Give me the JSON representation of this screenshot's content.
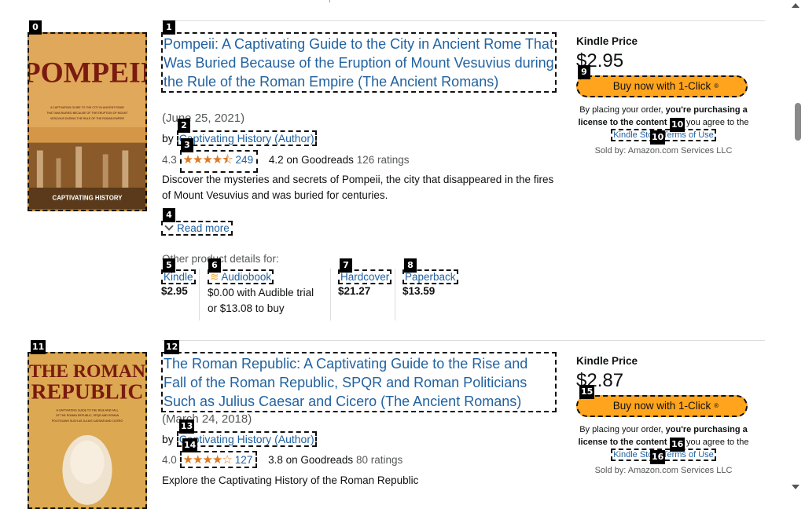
{
  "products": [
    {
      "cover": {
        "title": "POMPEII",
        "subtitle": "A CAPTIVATING GUIDE TO THE CITY IN ANCIENT ROME THAT WAS BURIED BECAUSE OF THE ERUPTION OF MOUNT VESUVIUS DURING THE RULE OF THE ROMAN EMPIRE",
        "publisher": "CAPTIVATING HISTORY",
        "bg": "#c98a3a",
        "text_color": "#7a1a10"
      },
      "title": "Pompeii: A Captivating Guide to the City in Ancient Rome That Was Buried Because of the Eruption of Mount Vesuvius during the Rule of the Roman Empire (The Ancient Romans)",
      "date": "(June 25, 2021)",
      "by": "by",
      "author": "Captivating History (Author)",
      "rating": "4.3",
      "stars": "★★★★⯪",
      "rating_count": "249",
      "goodreads": "4.2 on Goodreads",
      "goodreads_count": "126 ratings",
      "description": "Discover the mysteries and secrets of Pompeii, the city that disappeared in the fires of Mount Vesuvius and was buried for centuries.",
      "read_more": "Read more",
      "formats_label": "Other product details for:",
      "formats": {
        "kindle": {
          "name": "Kindle",
          "price": "$2.95"
        },
        "audiobook": {
          "name": "Audiobook",
          "price": "$0.00 with Audible trial",
          "alt": "or $13.08 to buy"
        },
        "hardcover": {
          "name": "Hardcover",
          "price": "$21.27"
        },
        "paperback": {
          "name": "Paperback",
          "price": "$13.59"
        }
      },
      "side": {
        "label": "Kindle Price",
        "price": "$2.95",
        "buy": "Buy now with 1-Click",
        "buy_mark": "®",
        "legal_1": "By placing your order, ",
        "legal_bold_1": "you're purchasing a license to the content",
        "legal_2": " and you agree to the ",
        "terms": "Kindle Store Terms of Use",
        "sold_by": "Sold by: Amazon.com Services LLC"
      },
      "badges": [
        "0",
        "1",
        "2",
        "3",
        "4",
        "5",
        "6",
        "7",
        "8",
        "9",
        "10",
        "10"
      ]
    },
    {
      "cover": {
        "title1": "THE ROMAN",
        "title2": "REPUBLIC",
        "subtitle": "A CAPTIVATING GUIDE TO THE RISE AND FALL OF THE ROMAN REPUBLIC, SPQR AND ROMAN POLITICIANS SUCH AS JULIUS CAESAR AND CICERO",
        "bg": "#d8a34a",
        "text_color": "#7a1a10"
      },
      "title": "The Roman Republic: A Captivating Guide to the Rise and Fall of the Roman Republic, SPQR and Roman Politicians Such as Julius Caesar and Cicero (The Ancient Romans)",
      "date": "(March 24, 2018)",
      "by": "by",
      "author": "Captivating History (Author)",
      "rating": "4.0",
      "stars": "★★★★☆",
      "rating_count": "127",
      "goodreads": "3.8 on Goodreads",
      "goodreads_count": "80 ratings",
      "description": "Explore the Captivating History of the Roman Republic",
      "side": {
        "label": "Kindle Price",
        "price": "$2.87",
        "buy": "Buy now with 1-Click",
        "buy_mark": "®",
        "legal_1": "By placing your order, ",
        "legal_bold_1": "you're purchasing a license to the content",
        "legal_2": " and you agree to the ",
        "terms": "Kindle Store Terms of Use",
        "sold_by": "Sold by: Amazon.com Services LLC"
      },
      "badges": [
        "11",
        "12",
        "13",
        "14",
        "15",
        "16",
        "16"
      ]
    }
  ]
}
